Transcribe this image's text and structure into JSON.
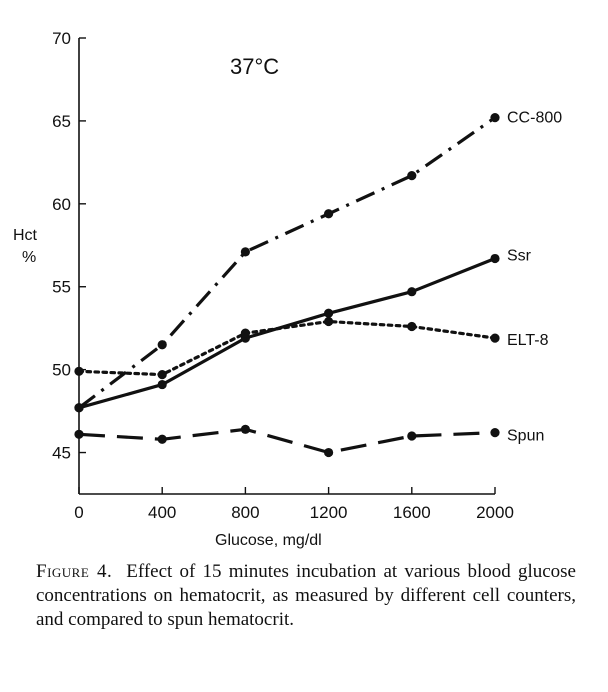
{
  "chart_data": {
    "type": "line",
    "annotation": "37°C",
    "xlabel": "Glucose, mg/dl",
    "ylabel": [
      "Hct",
      "%"
    ],
    "x": [
      0,
      400,
      800,
      1200,
      1600,
      2000
    ],
    "xticks": [
      "0",
      "400",
      "800",
      "1200",
      "1600",
      "2000"
    ],
    "yticks": [
      "45",
      "50",
      "55",
      "60",
      "65",
      "70"
    ],
    "xlim": [
      0,
      2000
    ],
    "ylim": [
      42.5,
      70
    ],
    "grid": false,
    "legend": "inline labels at right end of each line",
    "series": [
      {
        "name": "CC-800",
        "style": "dash-dot",
        "values": [
          47.7,
          51.5,
          57.1,
          59.4,
          61.7,
          65.2
        ]
      },
      {
        "name": "Ssr",
        "style": "solid",
        "values": [
          47.7,
          49.1,
          51.9,
          53.4,
          54.7,
          56.7
        ]
      },
      {
        "name": "ELT-8",
        "style": "dotted",
        "values": [
          49.9,
          49.7,
          52.2,
          52.9,
          52.6,
          51.9
        ]
      },
      {
        "name": "Spun",
        "style": "long-dash",
        "values": [
          46.1,
          45.8,
          46.4,
          45.0,
          46.0,
          46.2
        ]
      }
    ]
  },
  "caption": {
    "label": "Figure 4.",
    "text": "Effect of 15 minutes incubation at various blood glucose concentrations on hematocrit, as measured by different cell counters, and compared to spun hematocrit."
  }
}
